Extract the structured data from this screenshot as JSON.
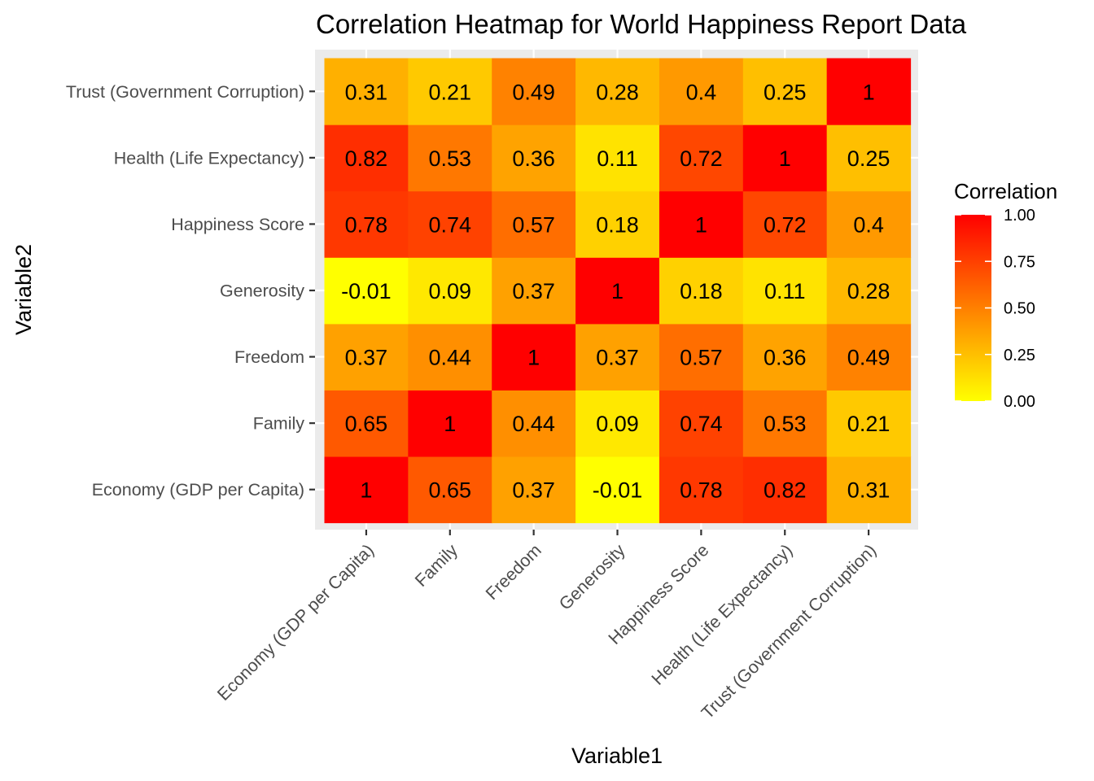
{
  "chart_data": {
    "type": "heatmap",
    "title": "Correlation Heatmap for World Happiness Report Data",
    "xlabel": "Variable1",
    "ylabel": "Variable2",
    "x_categories": [
      "Economy (GDP per Capita)",
      "Family",
      "Freedom",
      "Generosity",
      "Happiness Score",
      "Health (Life Expectancy)",
      "Trust (Government Corruption)"
    ],
    "y_categories": [
      "Economy (GDP per Capita)",
      "Family",
      "Freedom",
      "Generosity",
      "Happiness Score",
      "Health (Life Expectancy)",
      "Trust (Government Corruption)"
    ],
    "values": [
      [
        1,
        0.65,
        0.37,
        -0.01,
        0.78,
        0.82,
        0.31
      ],
      [
        0.65,
        1,
        0.44,
        0.09,
        0.74,
        0.53,
        0.21
      ],
      [
        0.37,
        0.44,
        1,
        0.37,
        0.57,
        0.36,
        0.49
      ],
      [
        -0.01,
        0.09,
        0.37,
        1,
        0.18,
        0.11,
        0.28
      ],
      [
        0.78,
        0.74,
        0.57,
        0.18,
        1,
        0.72,
        0.4
      ],
      [
        0.82,
        0.53,
        0.36,
        0.11,
        0.72,
        1,
        0.25
      ],
      [
        0.31,
        0.21,
        0.49,
        0.28,
        0.4,
        0.25,
        1
      ]
    ],
    "cell_labels": [
      [
        "1",
        "0.65",
        "0.37",
        "-0.01",
        "0.78",
        "0.82",
        "0.31"
      ],
      [
        "0.65",
        "1",
        "0.44",
        "0.09",
        "0.74",
        "0.53",
        "0.21"
      ],
      [
        "0.37",
        "0.44",
        "1",
        "0.37",
        "0.57",
        "0.36",
        "0.49"
      ],
      [
        "-0.01",
        "0.09",
        "0.37",
        "1",
        "0.18",
        "0.11",
        "0.28"
      ],
      [
        "0.78",
        "0.74",
        "0.57",
        "0.18",
        "1",
        "0.72",
        "0.4"
      ],
      [
        "0.82",
        "0.53",
        "0.36",
        "0.11",
        "0.72",
        "1",
        "0.25"
      ],
      [
        "0.31",
        "0.21",
        "0.49",
        "0.28",
        "0.4",
        "0.25",
        "1"
      ]
    ],
    "legend": {
      "title": "Correlation",
      "ticks": [
        0,
        0.25,
        0.5,
        0.75,
        1
      ],
      "tick_labels": [
        "0.00",
        "0.25",
        "0.50",
        "0.75",
        "1.00"
      ],
      "placement": "right"
    },
    "color_scale": {
      "low": "#FFFF00",
      "high": "#FF0000",
      "domain": [
        0,
        1
      ]
    },
    "panel_background": "#EBEBEB",
    "grid": true
  }
}
